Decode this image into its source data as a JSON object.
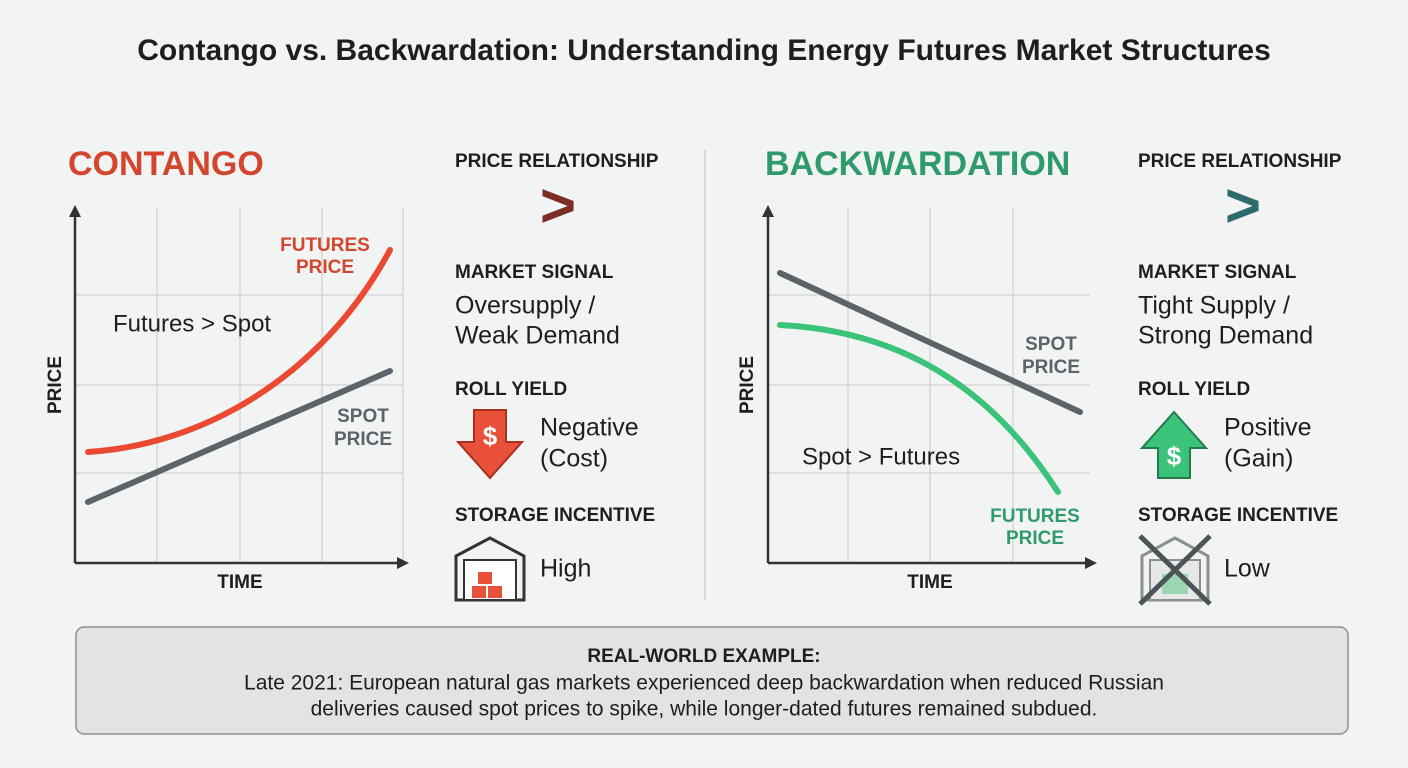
{
  "title": "Contango vs. Backwardation: Understanding Energy Futures Market Structures",
  "contango": {
    "heading": "CONTANGO",
    "y_label": "PRICE",
    "x_label": "TIME",
    "futures_label": [
      "FUTURES",
      "PRICE"
    ],
    "spot_label": [
      "SPOT",
      "PRICE"
    ],
    "annotation": "Futures > Spot",
    "price_relationship": {
      "heading": "PRICE RELATIONSHIP",
      "symbol": ">"
    },
    "market_signal": {
      "heading": "MARKET SIGNAL",
      "lines": [
        "Oversupply /",
        "Weak Demand"
      ]
    },
    "roll_yield": {
      "heading": "ROLL YIELD",
      "icon": "$",
      "lines": [
        "Negative",
        "(Cost)"
      ]
    },
    "storage_incentive": {
      "heading": "STORAGE INCENTIVE",
      "value": "High"
    }
  },
  "backwardation": {
    "heading": "BACKWARDATION",
    "y_label": "PRICE",
    "x_label": "TIME",
    "futures_label": [
      "FUTURES",
      "PRICE"
    ],
    "spot_label": [
      "SPOT",
      "PRICE"
    ],
    "annotation": "Spot > Futures",
    "price_relationship": {
      "heading": "PRICE RELATIONSHIP",
      "symbol": ">"
    },
    "market_signal": {
      "heading": "MARKET SIGNAL",
      "lines": [
        "Tight Supply /",
        "Strong Demand"
      ]
    },
    "roll_yield": {
      "heading": "ROLL YIELD",
      "icon": "$",
      "lines": [
        "Positive",
        "(Gain)"
      ]
    },
    "storage_incentive": {
      "heading": "STORAGE INCENTIVE",
      "value": "Low"
    }
  },
  "example": {
    "heading": "REAL-WORLD EXAMPLE:",
    "lines": [
      "Late 2021: European natural gas markets experienced deep backwardation when reduced Russian",
      "deliveries caused spot prices to spike, while longer-dated futures remained subdued."
    ]
  }
}
